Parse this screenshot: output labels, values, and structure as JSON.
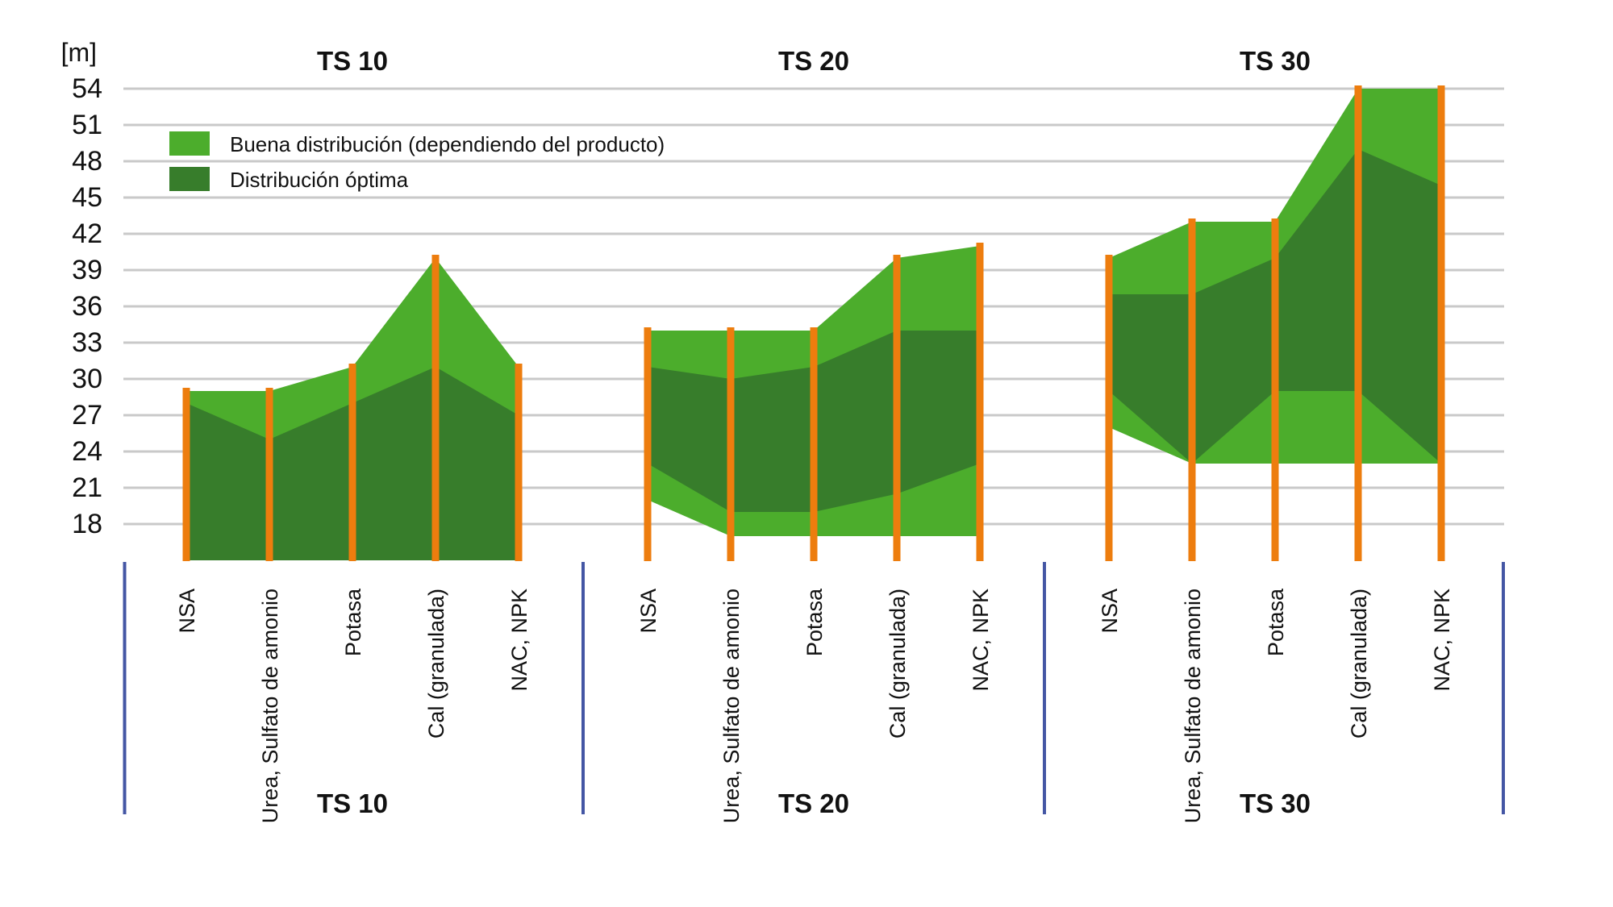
{
  "chart_data": {
    "type": "area",
    "subtype": "range-bands-grouped",
    "title": "",
    "ylabel": "[m]",
    "unit": "m",
    "yticks": [
      18,
      21,
      24,
      27,
      30,
      33,
      36,
      39,
      42,
      45,
      48,
      51,
      54
    ],
    "ylim_display": [
      15,
      54
    ],
    "floor_clip_value": 15,
    "grid": true,
    "legend_position": "top-left-inside",
    "series_labels": {
      "buena": "Buena distribución (dependiendo del producto)",
      "optima": "Distribución óptima"
    },
    "categories": [
      "NSA",
      "Urea, Sulfato de amonio",
      "Potasa",
      "Cal (granulada)",
      "NAC, NPK"
    ],
    "groups": [
      {
        "name": "TS 10",
        "buena_range": {
          "low": [
            15,
            15,
            15,
            15,
            15
          ],
          "high": [
            29,
            29,
            31,
            40,
            31
          ]
        },
        "optima_range": {
          "low": [
            15,
            15,
            15,
            15,
            15
          ],
          "high": [
            28,
            25,
            28,
            31,
            27
          ]
        }
      },
      {
        "name": "TS 20",
        "buena_range": {
          "low": [
            20,
            17,
            17,
            17,
            17
          ],
          "high": [
            34,
            34,
            34,
            40,
            41
          ]
        },
        "optima_range": {
          "low": [
            23,
            19,
            19,
            20.5,
            23
          ],
          "high": [
            31,
            30,
            31,
            34,
            34
          ]
        }
      },
      {
        "name": "TS 30",
        "buena_range": {
          "low": [
            26,
            23,
            23,
            23,
            23
          ],
          "high": [
            40,
            43,
            43,
            54,
            54
          ]
        },
        "optima_range": {
          "low": [
            29,
            23,
            29,
            29,
            23
          ],
          "high": [
            37,
            37,
            40,
            49,
            46
          ]
        }
      }
    ]
  },
  "colors": {
    "light_green": "#4CAD2C",
    "dark_green": "#377D2B",
    "orange": "#ED7D0E",
    "blue": "#4456A4",
    "gridline": "#C9C9C9",
    "text": "#111111"
  }
}
